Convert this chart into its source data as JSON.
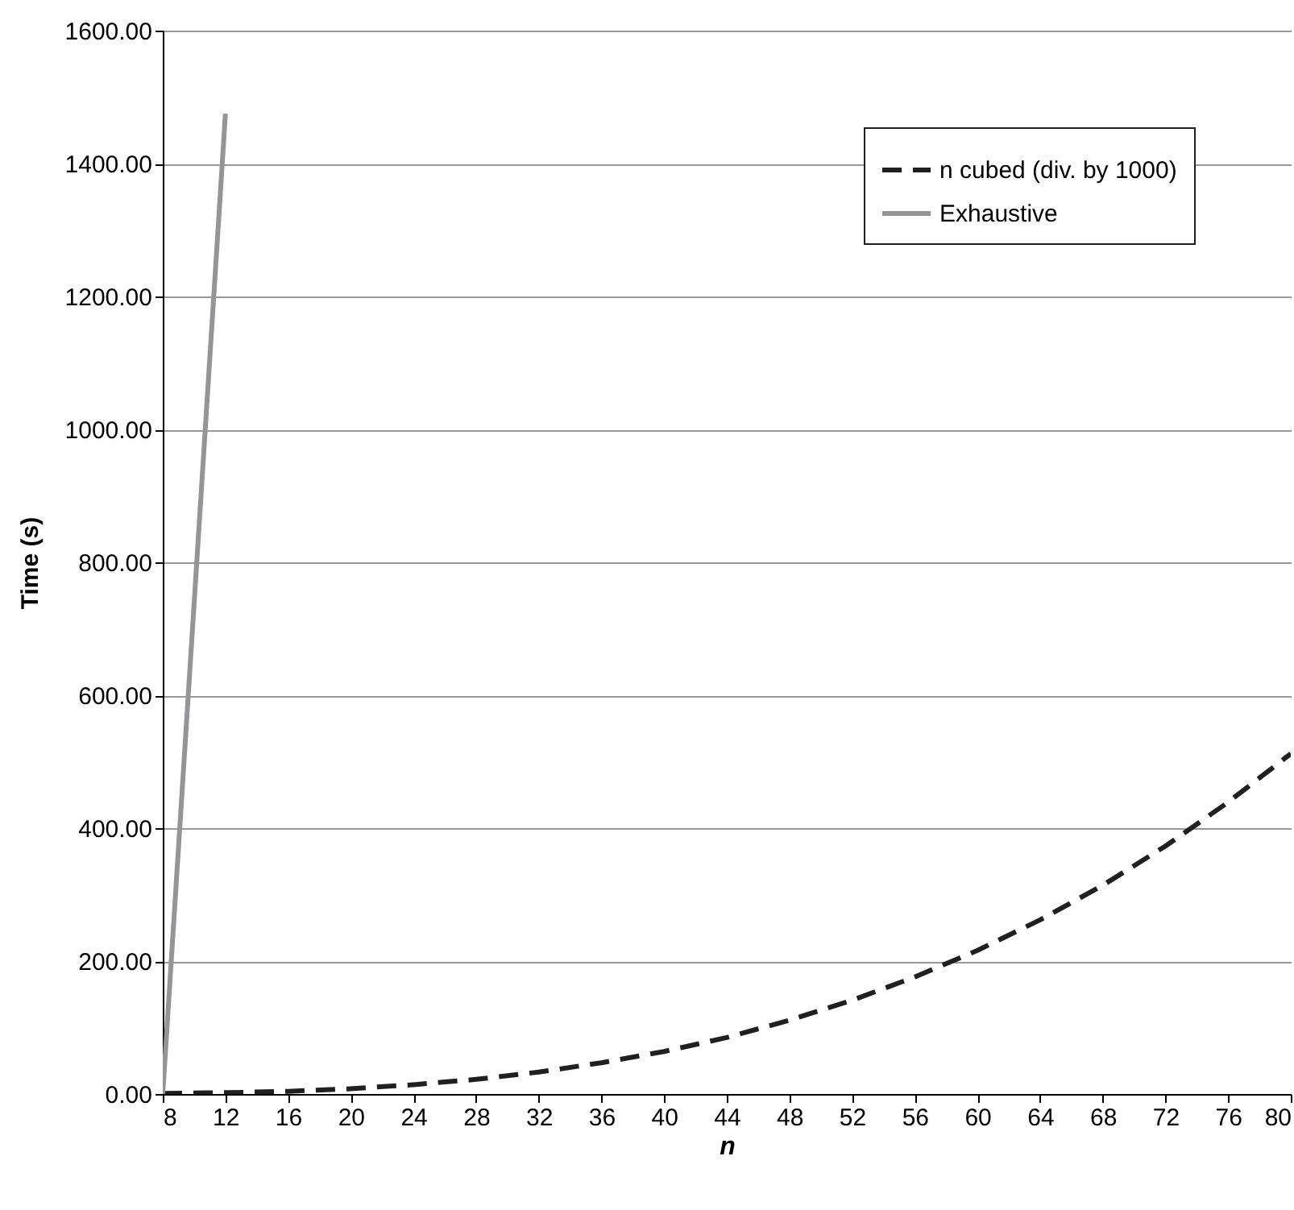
{
  "chart_data": {
    "type": "line",
    "xlabel": "n",
    "ylabel": "Time (s)",
    "xlim": [
      8,
      80
    ],
    "xticks": [
      8,
      12,
      16,
      20,
      24,
      28,
      32,
      36,
      40,
      44,
      48,
      52,
      56,
      60,
      64,
      68,
      72,
      76,
      80
    ],
    "ylim": [
      0,
      1600
    ],
    "yticks": [
      {
        "value": 0,
        "label": "0.00"
      },
      {
        "value": 200,
        "label": "200.00"
      },
      {
        "value": 400,
        "label": "400.00"
      },
      {
        "value": 600,
        "label": "600.00"
      },
      {
        "value": 800,
        "label": "800.00"
      },
      {
        "value": 1000,
        "label": "1000.00"
      },
      {
        "value": 1200,
        "label": "1200.00"
      },
      {
        "value": 1400,
        "label": "1400.00"
      },
      {
        "value": 1600,
        "label": "1600.00"
      }
    ],
    "grid": "y",
    "legend": "top right",
    "marker": "none",
    "series": [
      {
        "name": "n cubed (div. by 1000)",
        "color": "#231f20",
        "line_style": "dashed",
        "x": [
          8,
          12,
          16,
          20,
          24,
          28,
          32,
          36,
          40,
          44,
          48,
          52,
          56,
          60,
          64,
          68,
          72,
          76,
          80
        ],
        "values": [
          1,
          2,
          4,
          8,
          14,
          22,
          33,
          47,
          64,
          85,
          111,
          141,
          176,
          216,
          262,
          314,
          373,
          439,
          512
        ]
      },
      {
        "name": "Exhaustive",
        "color": "#939598",
        "line_style": "solid",
        "x": [
          8,
          12
        ],
        "values": [
          0,
          1475
        ]
      }
    ]
  }
}
